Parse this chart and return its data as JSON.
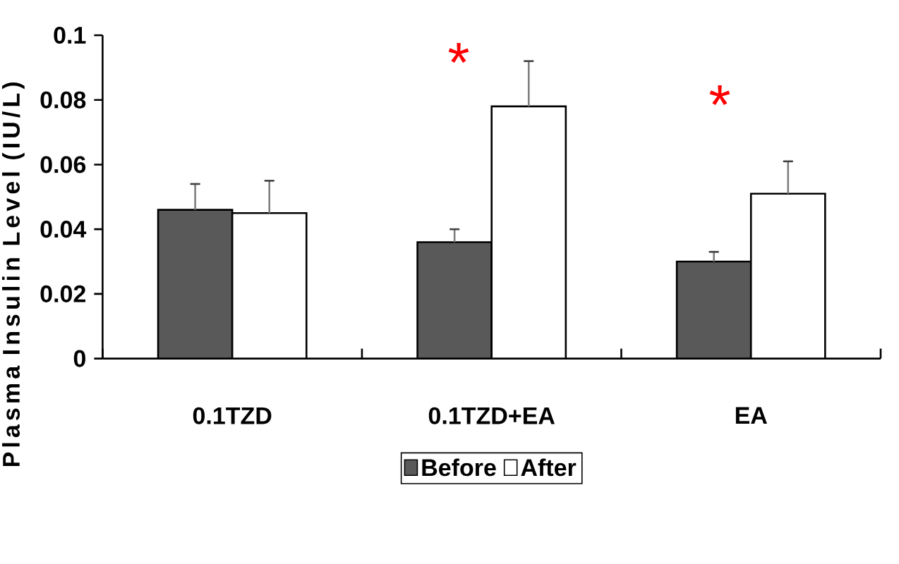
{
  "chart_data": {
    "type": "bar",
    "ylabel": "Plasma Insulin Level (IU/L)",
    "categories": [
      "0.1TZD",
      "0.1TZD+EA",
      "EA"
    ],
    "series": [
      {
        "name": "Before",
        "color": "#595959",
        "values": [
          0.046,
          0.036,
          0.03
        ],
        "errors": [
          [
            0.046,
            0.054
          ],
          [
            0.036,
            0.04
          ],
          [
            0.03,
            0.033
          ]
        ]
      },
      {
        "name": "After",
        "color": "#ffffff",
        "values": [
          0.045,
          0.078,
          0.051
        ],
        "errors": [
          [
            0.045,
            0.055
          ],
          [
            0.078,
            0.092
          ],
          [
            0.051,
            0.061
          ]
        ]
      }
    ],
    "ylim": [
      0,
      0.1
    ],
    "yticks": [
      0,
      0.02,
      0.04,
      0.06,
      0.08,
      0.1
    ],
    "legend": "bottom",
    "annotations": [
      "*",
      "*"
    ]
  }
}
